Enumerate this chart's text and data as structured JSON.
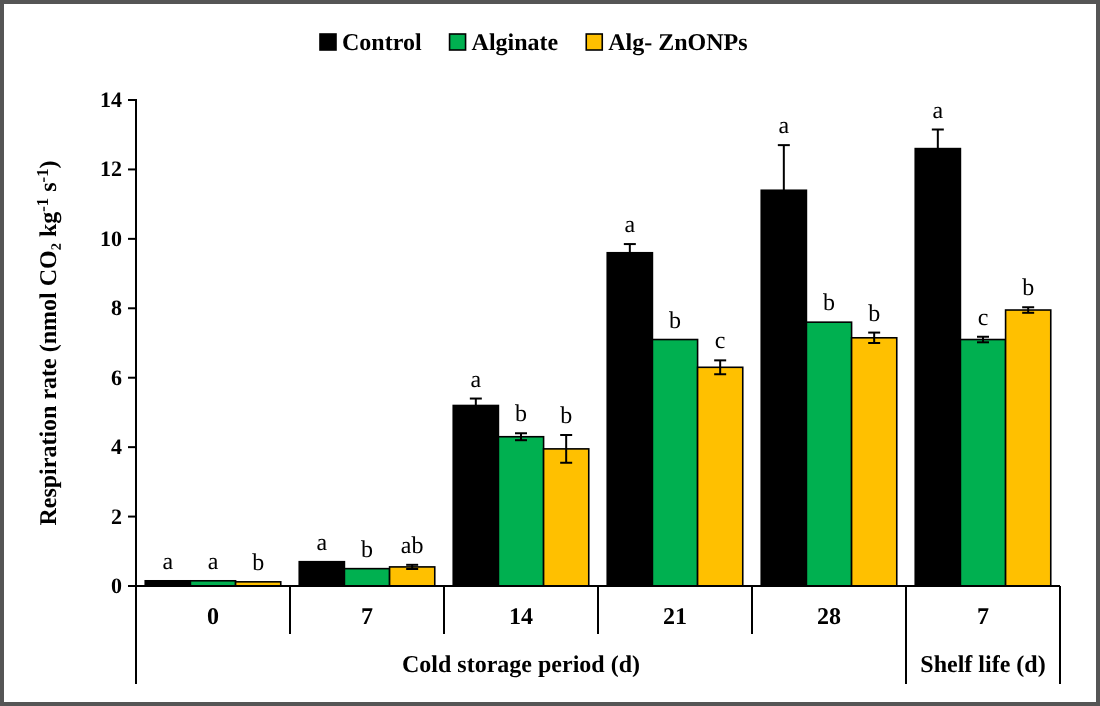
{
  "chart_data": {
    "type": "bar",
    "ylabel": "Respiration rate (nmol CO₂ kg$^{-1}$ s$^{-1}$)",
    "xlabel": "Cold storage period (d)",
    "annotations": [
      "Shelf life (d)"
    ],
    "categories": [
      "0",
      "7",
      "14",
      "21",
      "28",
      "7"
    ],
    "series": [
      {
        "name": "Control",
        "color": "#000000",
        "values": [
          0.15,
          0.7,
          5.2,
          9.6,
          11.4,
          12.6
        ],
        "errors": [
          null,
          null,
          0.2,
          0.25,
          1.3,
          0.55
        ],
        "value_labels": [
          "a",
          "a",
          "a",
          "a",
          "a",
          "a"
        ]
      },
      {
        "name": "Alginate",
        "color": "#00b050",
        "values": [
          0.15,
          0.5,
          4.3,
          7.1,
          7.6,
          7.1
        ],
        "errors": [
          null,
          null,
          0.1,
          null,
          null,
          0.08
        ],
        "value_labels": [
          "a",
          "b",
          "b",
          "b",
          "b",
          "c"
        ]
      },
      {
        "name": "Alg- ZnONPs",
        "color": "#ffc000",
        "values": [
          0.12,
          0.55,
          3.95,
          6.3,
          7.15,
          7.95
        ],
        "errors": [
          null,
          0.06,
          0.4,
          0.2,
          0.15,
          0.08
        ],
        "value_labels": [
          "b",
          "ab",
          "b",
          "c",
          "b",
          "b"
        ]
      }
    ],
    "ylim": [
      0,
      14
    ],
    "yticks": [
      0,
      2,
      4,
      6,
      8,
      10,
      12,
      14
    ],
    "grid": false,
    "legend": "top"
  }
}
